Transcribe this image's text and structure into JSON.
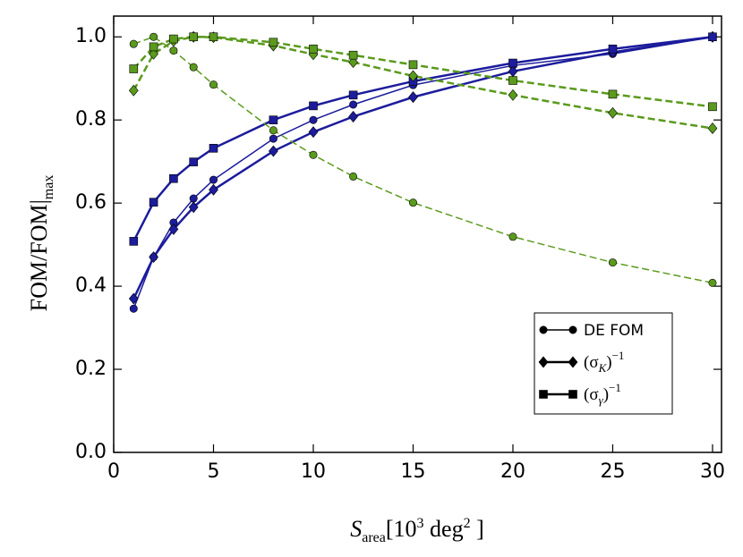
{
  "chart_data": {
    "type": "line",
    "x": [
      1,
      2,
      3,
      4,
      5,
      8,
      10,
      12,
      15,
      20,
      25,
      30
    ],
    "series": [
      {
        "color": "#1c1c9c",
        "marker": "circle",
        "dash": false,
        "width": 1.5,
        "values": [
          0.346,
          0.47,
          0.553,
          0.611,
          0.656,
          0.755,
          0.8,
          0.837,
          0.884,
          0.931,
          0.959,
          1.0
        ]
      },
      {
        "color": "#1c1c9c",
        "marker": "diamond",
        "dash": false,
        "width": 2.5,
        "values": [
          0.37,
          0.47,
          0.537,
          0.59,
          0.632,
          0.725,
          0.771,
          0.808,
          0.855,
          0.917,
          0.963,
          1.0
        ]
      },
      {
        "color": "#1c1c9c",
        "marker": "square",
        "dash": false,
        "width": 2.5,
        "values": [
          0.508,
          0.602,
          0.659,
          0.699,
          0.732,
          0.8,
          0.834,
          0.86,
          0.893,
          0.937,
          0.971,
          1.0
        ]
      },
      {
        "color": "#5a9a1c",
        "marker": "circle",
        "dash": true,
        "width": 1.5,
        "values": [
          0.983,
          1.0,
          0.967,
          0.927,
          0.885,
          0.775,
          0.716,
          0.664,
          0.601,
          0.519,
          0.457,
          0.408
        ]
      },
      {
        "color": "#5a9a1c",
        "marker": "diamond",
        "dash": true,
        "width": 2.5,
        "values": [
          0.871,
          0.959,
          0.99,
          1.0,
          0.999,
          0.979,
          0.958,
          0.939,
          0.906,
          0.86,
          0.817,
          0.78
        ]
      },
      {
        "color": "#5a9a1c",
        "marker": "square",
        "dash": true,
        "width": 2.5,
        "values": [
          0.923,
          0.976,
          0.995,
          1.0,
          1.0,
          0.987,
          0.971,
          0.956,
          0.933,
          0.895,
          0.862,
          0.832
        ]
      }
    ],
    "xlim": [
      0,
      30.45
    ],
    "ylim": [
      0,
      1.05
    ],
    "xticks": [
      0,
      5,
      10,
      15,
      20,
      25,
      30
    ],
    "yticks": [
      {
        "value": 0,
        "label": "0.0"
      },
      {
        "value": 0.2,
        "label": "0.2"
      },
      {
        "value": 0.4,
        "label": "0.4"
      },
      {
        "value": 0.6,
        "label": "0.6"
      },
      {
        "value": 0.8,
        "label": "0.8"
      },
      {
        "value": 1.0,
        "label": "1.0"
      }
    ],
    "x_label": [
      "S",
      "area",
      "[10",
      "3",
      " deg",
      "2",
      " ]"
    ],
    "y_label": [
      "FOM/FOM|",
      "max"
    ],
    "legend_position": "lower right",
    "legend": [
      {
        "marker": "circle",
        "label": [
          "DE FOM"
        ]
      },
      {
        "marker": "diamond",
        "label": [
          "(σ",
          "K",
          ")",
          "−1"
        ]
      },
      {
        "marker": "square",
        "label": [
          "(σ",
          "γ",
          ")",
          "−1"
        ]
      }
    ]
  }
}
